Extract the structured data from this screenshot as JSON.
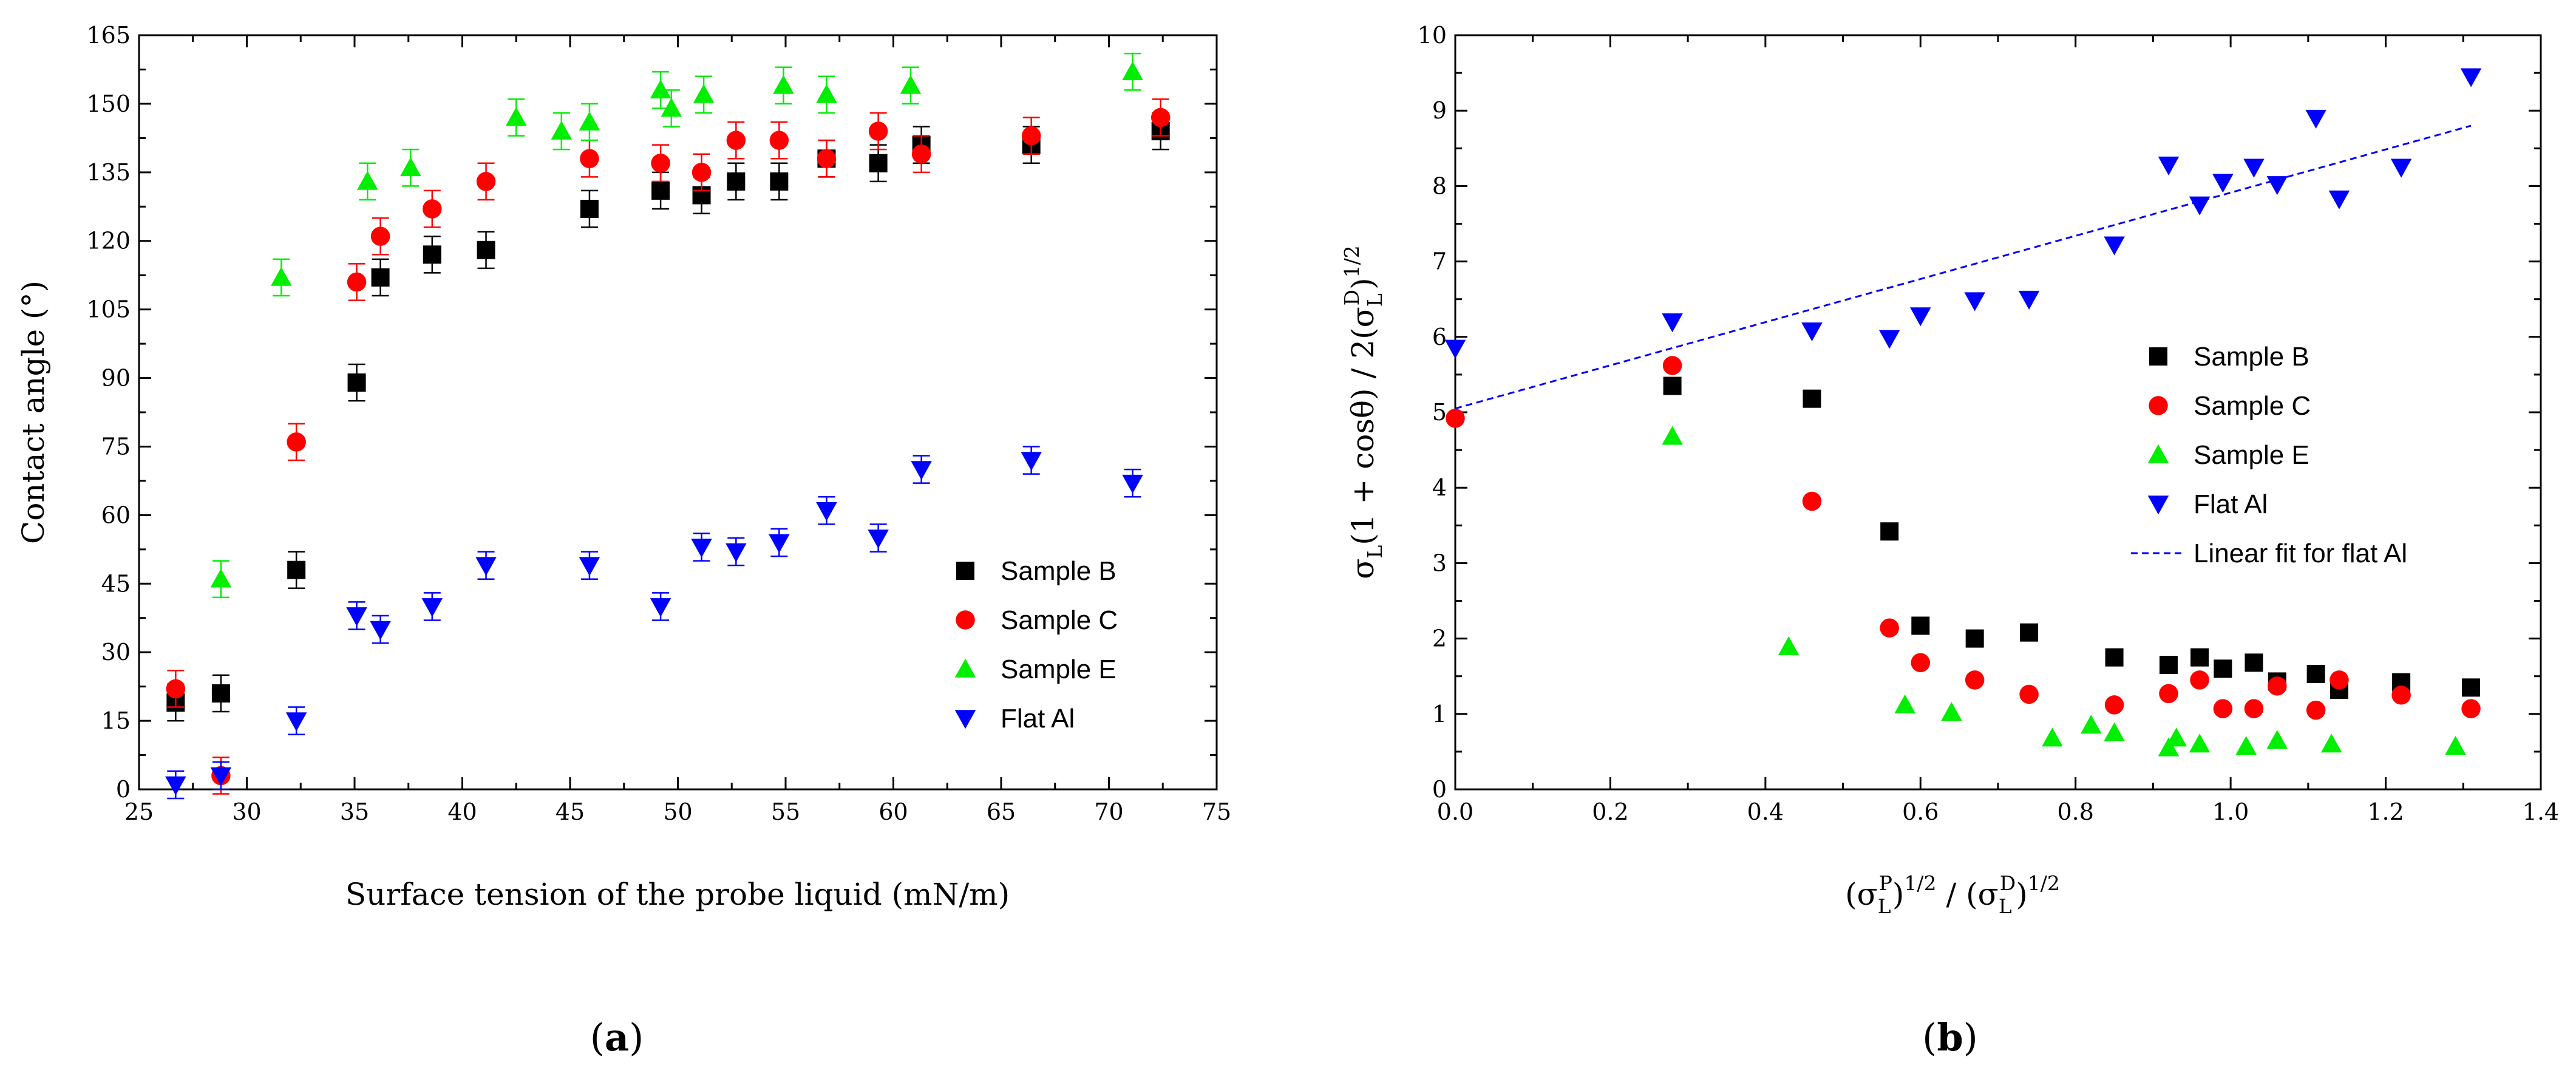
{
  "colors": {
    "Sample B": "#000000",
    "Sample C": "#ff0000",
    "Sample E": "#00ee00",
    "Flat Al": "#0000ff"
  },
  "chart_data": [
    {
      "panel_label": "a",
      "type": "scatter",
      "xlabel": "Surface tension of the probe liquid (mN/m)",
      "ylabel": "Contact angle (°)",
      "xlim": [
        25,
        75
      ],
      "ylim": [
        0,
        165
      ],
      "xticks": [
        25,
        30,
        35,
        40,
        45,
        50,
        55,
        60,
        65,
        70,
        75
      ],
      "yticks": [
        0,
        15,
        30,
        45,
        60,
        75,
        90,
        105,
        120,
        135,
        150,
        165
      ],
      "legend_position": "lower-right",
      "series": [
        {
          "name": "Sample B",
          "marker": "square",
          "x": [
            26.7,
            28.8,
            32.3,
            35.1,
            36.2,
            38.6,
            41.1,
            45.9,
            49.2,
            51.1,
            52.7,
            54.7,
            56.9,
            59.3,
            61.3,
            66.4,
            72.4
          ],
          "y": [
            19,
            21,
            48,
            89,
            112,
            117,
            118,
            127,
            131,
            130,
            133,
            133,
            138,
            137,
            141,
            141,
            144
          ],
          "err": [
            4,
            4,
            4,
            4,
            4,
            4,
            4,
            4,
            4,
            4,
            4,
            4,
            4,
            4,
            4,
            4,
            4
          ]
        },
        {
          "name": "Sample C",
          "marker": "circle",
          "x": [
            26.7,
            28.8,
            32.3,
            35.1,
            36.2,
            38.6,
            41.1,
            45.9,
            49.2,
            51.1,
            52.7,
            54.7,
            56.9,
            59.3,
            61.3,
            66.4,
            72.4
          ],
          "y": [
            22,
            3,
            76,
            111,
            121,
            127,
            133,
            138,
            137,
            135,
            142,
            142,
            138,
            144,
            139,
            143,
            147
          ],
          "err": [
            4,
            4,
            4,
            4,
            4,
            4,
            4,
            4,
            4,
            4,
            4,
            4,
            4,
            4,
            4,
            4,
            4
          ]
        },
        {
          "name": "Sample E",
          "marker": "triangle-up",
          "x": [
            28.8,
            31.6,
            35.6,
            37.6,
            42.5,
            44.6,
            45.9,
            49.2,
            49.7,
            51.2,
            54.9,
            56.9,
            60.8,
            71.1
          ],
          "y": [
            46,
            112,
            133,
            136,
            147,
            144,
            146,
            153,
            149,
            152,
            154,
            152,
            154,
            157
          ],
          "err": [
            4,
            4,
            4,
            4,
            4,
            4,
            4,
            4,
            4,
            4,
            4,
            4,
            4,
            4
          ]
        },
        {
          "name": "Flat Al",
          "marker": "triangle-down",
          "x": [
            26.7,
            28.8,
            32.3,
            35.1,
            36.2,
            38.6,
            41.1,
            45.9,
            49.2,
            51.1,
            52.7,
            54.7,
            56.9,
            59.3,
            61.3,
            66.4,
            71.1
          ],
          "y": [
            1,
            3,
            15,
            38,
            35,
            40,
            49,
            49,
            40,
            53,
            52,
            54,
            61,
            55,
            70,
            72,
            67
          ],
          "err": [
            3,
            3,
            3,
            3,
            3,
            3,
            3,
            3,
            3,
            3,
            3,
            3,
            3,
            3,
            3,
            3,
            3
          ]
        }
      ]
    },
    {
      "panel_label": "b",
      "type": "scatter",
      "xlabel_parts": {
        "a": "(σ",
        "b": "L",
        "c": "P",
        "d": ")",
        "e": "1/2",
        "f": " / (σ",
        "g": "L",
        "h": "D",
        "i": ")",
        "j": "1/2"
      },
      "ylabel_parts": {
        "a": "σ",
        "b": "L",
        "c": "(1 + cosθ) / 2(σ",
        "d": "L",
        "e": "D",
        "f": ")",
        "g": "1/2"
      },
      "xlim": [
        0,
        1.4
      ],
      "ylim": [
        0,
        10
      ],
      "xticks": [
        "0.0",
        "0.2",
        "0.4",
        "0.6",
        "0.8",
        "1.0",
        "1.2",
        "1.4"
      ],
      "yticks": [
        "0",
        "1",
        "2",
        "3",
        "4",
        "5",
        "6",
        "7",
        "8",
        "9",
        "10"
      ],
      "legend_position": "right-middle",
      "series": [
        {
          "name": "Sample B",
          "marker": "square",
          "x": [
            0.28,
            0.46,
            0.56,
            0.6,
            0.67,
            0.74,
            0.85,
            0.92,
            0.96,
            0.99,
            1.03,
            1.06,
            1.11,
            1.14,
            1.22,
            1.31
          ],
          "y": [
            5.35,
            5.18,
            3.42,
            2.17,
            2.0,
            2.08,
            1.75,
            1.65,
            1.75,
            1.6,
            1.68,
            1.43,
            1.53,
            1.32,
            1.42,
            1.35
          ]
        },
        {
          "name": "Sample C",
          "marker": "circle",
          "x": [
            0.0,
            0.28,
            0.46,
            0.56,
            0.6,
            0.67,
            0.74,
            0.85,
            0.92,
            0.96,
            0.99,
            1.03,
            1.06,
            1.11,
            1.14,
            1.22,
            1.31
          ],
          "y": [
            4.92,
            5.62,
            3.82,
            2.14,
            1.68,
            1.45,
            1.26,
            1.12,
            1.27,
            1.45,
            1.07,
            1.07,
            1.37,
            1.05,
            1.45,
            1.25,
            1.07
          ]
        },
        {
          "name": "Sample E",
          "marker": "triangle-up",
          "x": [
            0.28,
            0.43,
            0.58,
            0.64,
            0.77,
            0.82,
            0.85,
            0.92,
            0.93,
            0.96,
            1.02,
            1.06,
            1.13,
            1.29
          ],
          "y": [
            4.68,
            1.89,
            1.12,
            1.02,
            0.68,
            0.85,
            0.75,
            0.55,
            0.68,
            0.6,
            0.57,
            0.65,
            0.6,
            0.57
          ]
        },
        {
          "name": "Flat Al",
          "marker": "triangle-down",
          "x": [
            0.0,
            0.28,
            0.46,
            0.56,
            0.6,
            0.67,
            0.74,
            0.85,
            0.92,
            0.96,
            0.99,
            1.03,
            1.06,
            1.11,
            1.14,
            1.22,
            1.31
          ],
          "y": [
            5.85,
            6.2,
            6.08,
            5.98,
            6.28,
            6.48,
            6.5,
            7.22,
            8.28,
            7.75,
            8.05,
            8.25,
            8.02,
            8.9,
            7.83,
            8.25,
            9.45
          ]
        }
      ],
      "fit": {
        "name": "Linear fit for flat Al",
        "style": "dashed",
        "x": [
          0.0,
          1.31
        ],
        "y": [
          5.05,
          8.8
        ]
      }
    }
  ]
}
